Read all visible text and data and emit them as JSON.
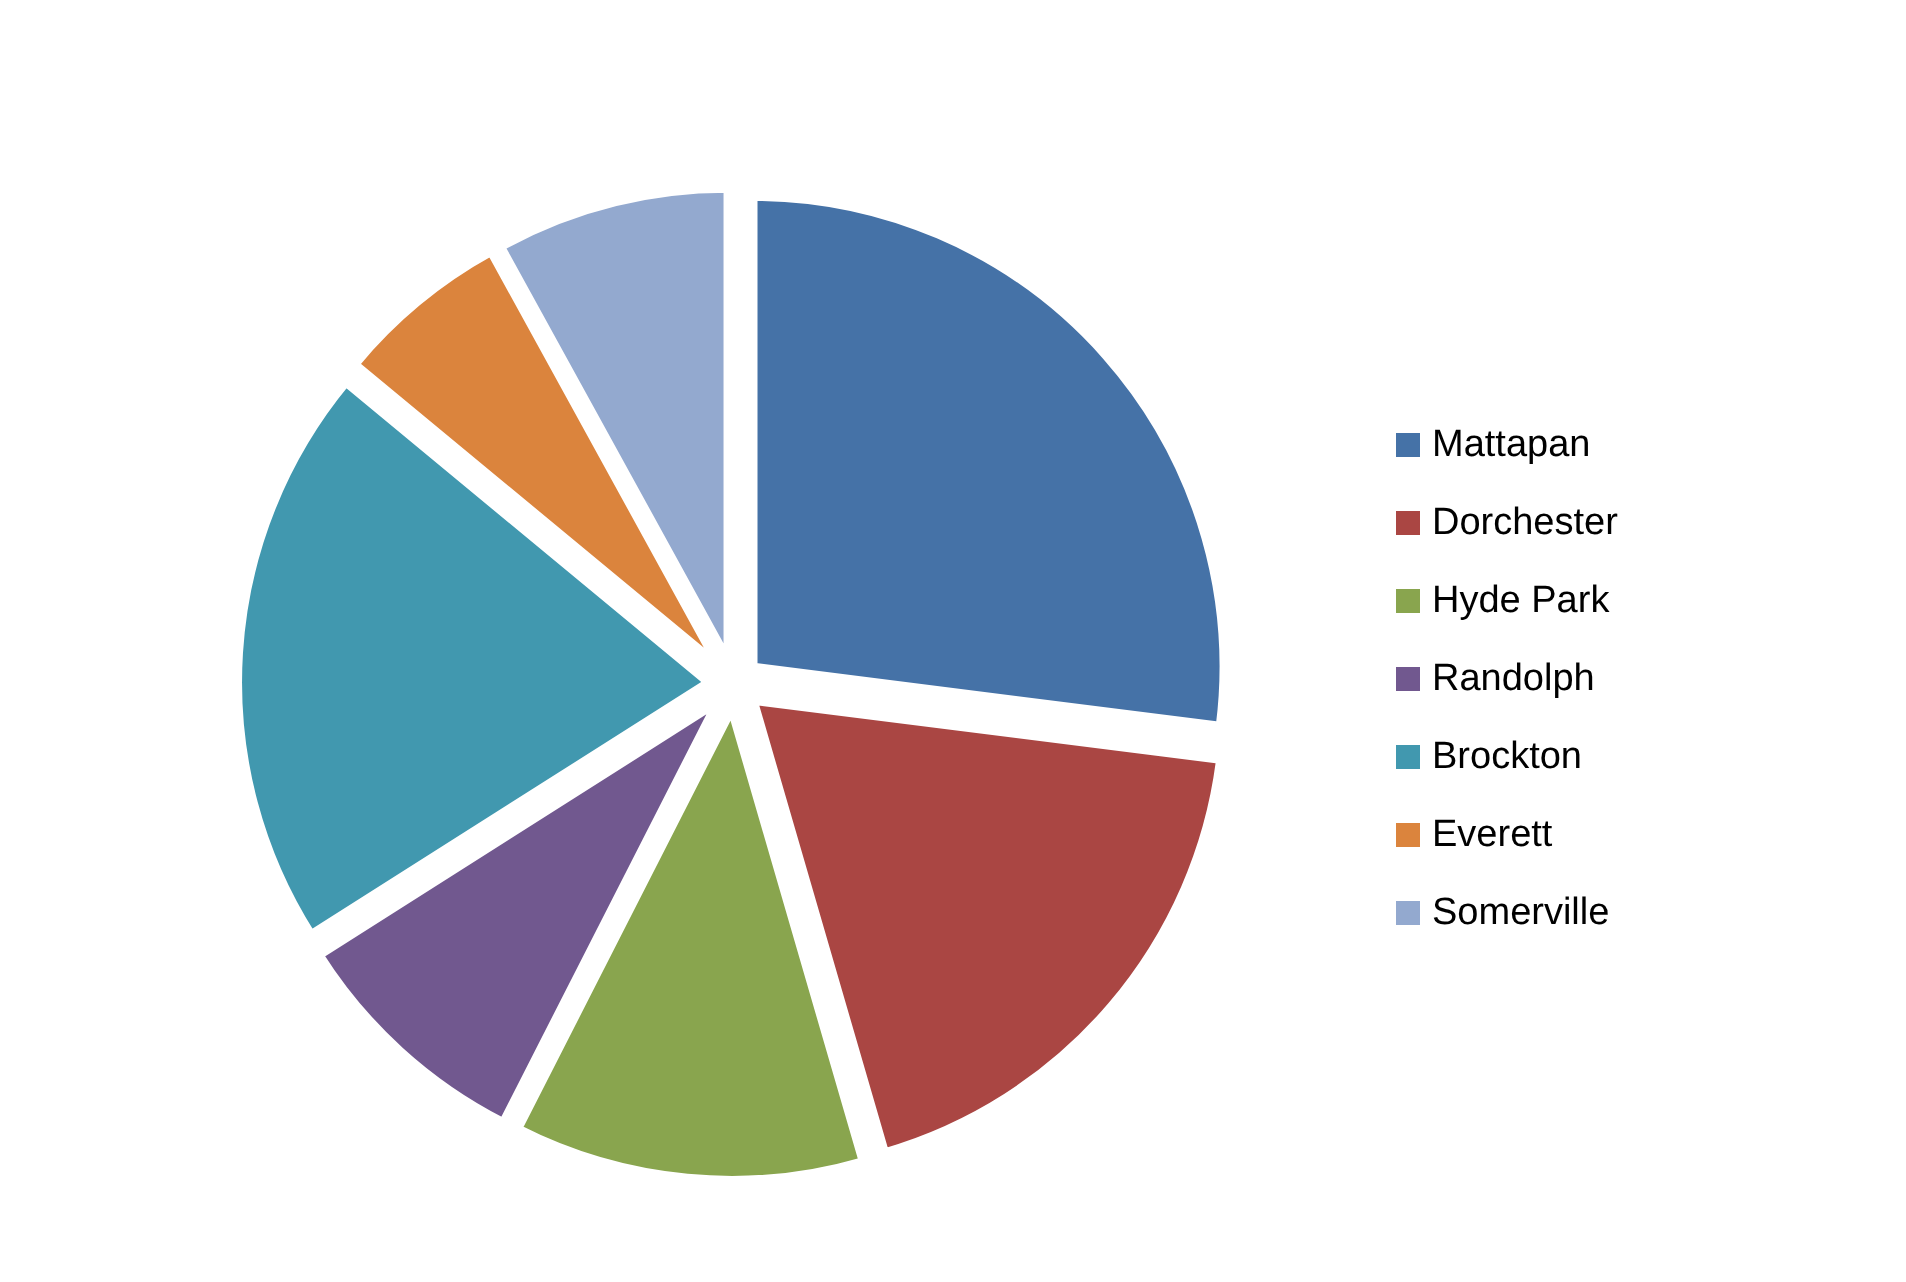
{
  "chart_data": {
    "type": "pie",
    "categories": [
      "Mattapan",
      "Dorchester",
      "Hyde Park",
      "Randolph",
      "Brockton",
      "Everett",
      "Somerville"
    ],
    "values": [
      27,
      18.5,
      12,
      8.5,
      20,
      6,
      8
    ],
    "colors": [
      "#4572a7",
      "#aa4643",
      "#89a54e",
      "#71588f",
      "#4198af",
      "#db843d",
      "#93a9cf"
    ],
    "legend": "right"
  }
}
